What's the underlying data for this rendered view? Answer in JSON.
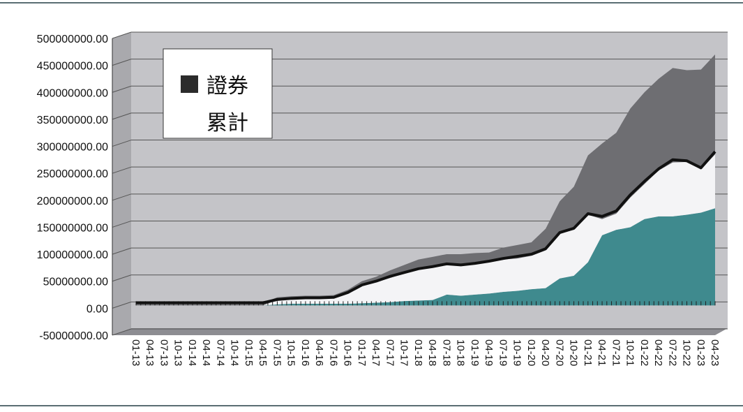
{
  "chart_data": {
    "type": "area",
    "title": "",
    "xlabel": "",
    "ylabel": "",
    "ylim": [
      -50000000,
      500000000
    ],
    "grid": true,
    "legend_placement": "top-left",
    "y_tick_labels": [
      "500000000.00",
      "450000000.00",
      "400000000.00",
      "350000000.00",
      "300000000.00",
      "250000000.00",
      "200000000.00",
      "150000000.00",
      "100000000.00",
      "50000000.00",
      "0.00",
      "-50000000.00"
    ],
    "x_tick_labels": [
      "01-13",
      "04-13",
      "07-13",
      "10-13",
      "01-14",
      "04-14",
      "07-14",
      "10-14",
      "01-15",
      "04-15",
      "07-15",
      "10-15",
      "01-16",
      "04-16",
      "07-16",
      "10-16",
      "01-17",
      "04-17",
      "07-17",
      "10-17",
      "01-18",
      "04-18",
      "07-18",
      "10-18",
      "01-19",
      "04-19",
      "07-19",
      "10-19",
      "01-20",
      "04-20",
      "07-20",
      "10-20",
      "01-21",
      "04-21",
      "07-21",
      "10-21",
      "01-22",
      "04-22",
      "07-22",
      "10-22",
      "01-23",
      "04-23"
    ],
    "legend": [
      {
        "label": "證券",
        "color": "#2b2b2b"
      },
      {
        "label": "累計",
        "color": "#ffffff"
      }
    ],
    "series": [
      {
        "color": "#3f8a8e",
        "values": [
          0,
          0,
          0,
          0,
          0,
          0,
          0,
          0,
          0,
          0,
          2000000,
          3000000,
          3000000,
          3000000,
          3000000,
          3000000,
          4000000,
          5000000,
          6000000,
          8000000,
          9000000,
          10000000,
          20000000,
          18000000,
          20000000,
          22000000,
          25000000,
          27000000,
          30000000,
          32000000,
          50000000,
          55000000,
          80000000,
          130000000,
          140000000,
          145000000,
          160000000,
          165000000,
          165000000,
          168000000,
          172000000,
          180000000
        ]
      },
      {
        "color": "#f4f4f6",
        "values": [
          0,
          0,
          0,
          0,
          0,
          0,
          0,
          0,
          0,
          0,
          8000000,
          9000000,
          10000000,
          10000000,
          11000000,
          20000000,
          33000000,
          38000000,
          45000000,
          52000000,
          58000000,
          60000000,
          55000000,
          55000000,
          57000000,
          58000000,
          60000000,
          60000000,
          62000000,
          70000000,
          83000000,
          85000000,
          88000000,
          30000000,
          30000000,
          55000000,
          65000000,
          85000000,
          100000000,
          98000000,
          80000000,
          100000000
        ]
      },
      {
        "color": "#6e6e72",
        "values": [
          5000000,
          5000000,
          5000000,
          5000000,
          5000000,
          5000000,
          5000000,
          5000000,
          5000000,
          5000000,
          5000000,
          5000000,
          5000000,
          5000000,
          5000000,
          6000000,
          8000000,
          10000000,
          14000000,
          15000000,
          18000000,
          20000000,
          20000000,
          22000000,
          20000000,
          18000000,
          22000000,
          25000000,
          25000000,
          40000000,
          60000000,
          80000000,
          110000000,
          140000000,
          150000000,
          165000000,
          170000000,
          170000000,
          175000000,
          170000000,
          185000000,
          185000000
        ]
      }
    ],
    "cumulative_line": {
      "color": "#111111",
      "values": [
        5000000,
        5000000,
        5000000,
        5000000,
        5000000,
        5000000,
        5000000,
        5000000,
        5000000,
        5000000,
        11000000,
        13000000,
        14000000,
        14000000,
        15000000,
        24000000,
        38000000,
        45000000,
        54000000,
        61000000,
        68000000,
        72000000,
        77000000,
        75000000,
        78000000,
        82000000,
        87000000,
        91000000,
        95000000,
        105000000,
        135000000,
        143000000,
        170000000,
        165000000,
        175000000,
        205000000,
        230000000,
        253000000,
        270000000,
        268000000,
        255000000,
        285000000
      ]
    }
  }
}
